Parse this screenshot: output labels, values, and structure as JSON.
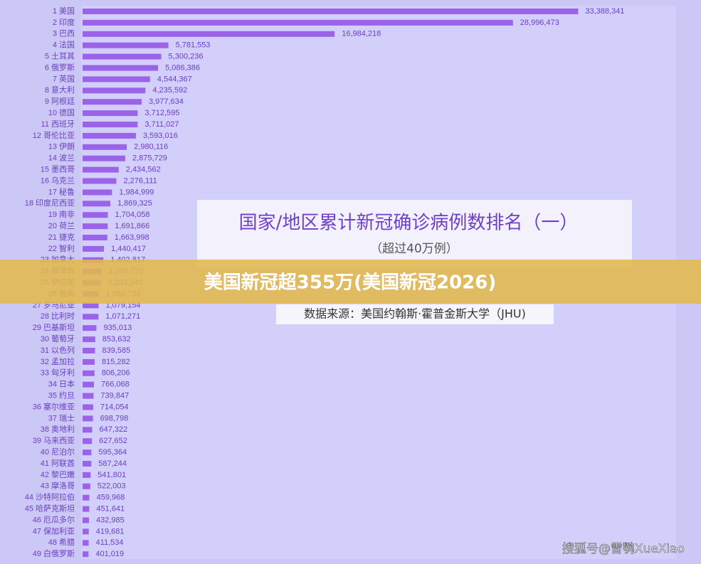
{
  "chart_data": {
    "type": "bar",
    "orientation": "horizontal",
    "title": "国家/地区累计新冠确诊病例数排名（一）",
    "subtitle": "（超过40万例）",
    "source": "数据来源：美国约翰斯·霍普金斯大学（JHU)",
    "color": "#9b63e8",
    "xlim": [
      0,
      35000000
    ],
    "categories": [
      "1 美国",
      "2 印度",
      "3 巴西",
      "4 法国",
      "5 土耳其",
      "6 俄罗斯",
      "7 英国",
      "8 意大利",
      "9 阿根廷",
      "10 德国",
      "11 西班牙",
      "12 哥伦比亚",
      "13 伊朗",
      "14 波兰",
      "15 墨西哥",
      "16 乌克兰",
      "17 秘鲁",
      "18 印度尼西亚",
      "19 南非",
      "20 荷兰",
      "21 捷克",
      "22 智利",
      "23 加拿大",
      "24 菲律宾",
      "25 伊拉克",
      "26 瑞典",
      "27 罗马尼亚",
      "28 比利时",
      "29 巴基斯坦",
      "30 葡萄牙",
      "31 以色列",
      "32 孟加拉",
      "33 匈牙利",
      "34 日本",
      "35 约旦",
      "36 塞尔维亚",
      "37 瑞士",
      "38 奥地利",
      "39 马来西亚",
      "40 尼泊尔",
      "41 阿联酋",
      "42 黎巴嫩",
      "43 摩洛哥",
      "44 沙特阿拉伯",
      "45 哈萨克斯坦",
      "46 厄瓜多尔",
      "47 保加利亚",
      "48 希腊",
      "49 白俄罗斯"
    ],
    "values": [
      33388341,
      28996473,
      16984218,
      5781553,
      5300236,
      5086386,
      4544367,
      4235592,
      3977634,
      3712595,
      3711027,
      3593016,
      2980116,
      2875729,
      2434562,
      2276111,
      1984999,
      1869325,
      1704058,
      1691866,
      1663998,
      1440417,
      1402817,
      1280773,
      1233240,
      1080733,
      1079154,
      1071271,
      935013,
      853632,
      839585,
      815282,
      806206,
      766068,
      739847,
      714054,
      698798,
      647322,
      627652,
      595364,
      587244,
      541801,
      522003,
      459968,
      451641,
      432985,
      419681,
      411534,
      401019
    ],
    "value_labels": [
      "33,388,341",
      "28,996,473",
      "16,984,218",
      "5,781,553",
      "5,300,236",
      "5,086,386",
      "4,544,367",
      "4,235,592",
      "3,977,634",
      "3,712,595",
      "3,711,027",
      "3,593,016",
      "2,980,116",
      "2,875,729",
      "2,434,562",
      "2,276,111",
      "1,984,999",
      "1,869,325",
      "1,704,058",
      "1,691,866",
      "1,663,998",
      "1,440,417",
      "1,402,817",
      "1,280,773",
      "1,233,240",
      "1,080,733",
      "1,079,154",
      "1,071,271",
      "935,013",
      "853,632",
      "839,585",
      "815,282",
      "806,206",
      "766,068",
      "739,847",
      "714,054",
      "698,798",
      "647,322",
      "627,652",
      "595,364",
      "587,244",
      "541,801",
      "522,003",
      "459,968",
      "451,641",
      "432,985",
      "419,681",
      "411,534",
      "401,019"
    ]
  },
  "banner": "美国新冠超355万(美国新冠2026)",
  "watermark": "搜狐号@雪鹗XueXiao"
}
